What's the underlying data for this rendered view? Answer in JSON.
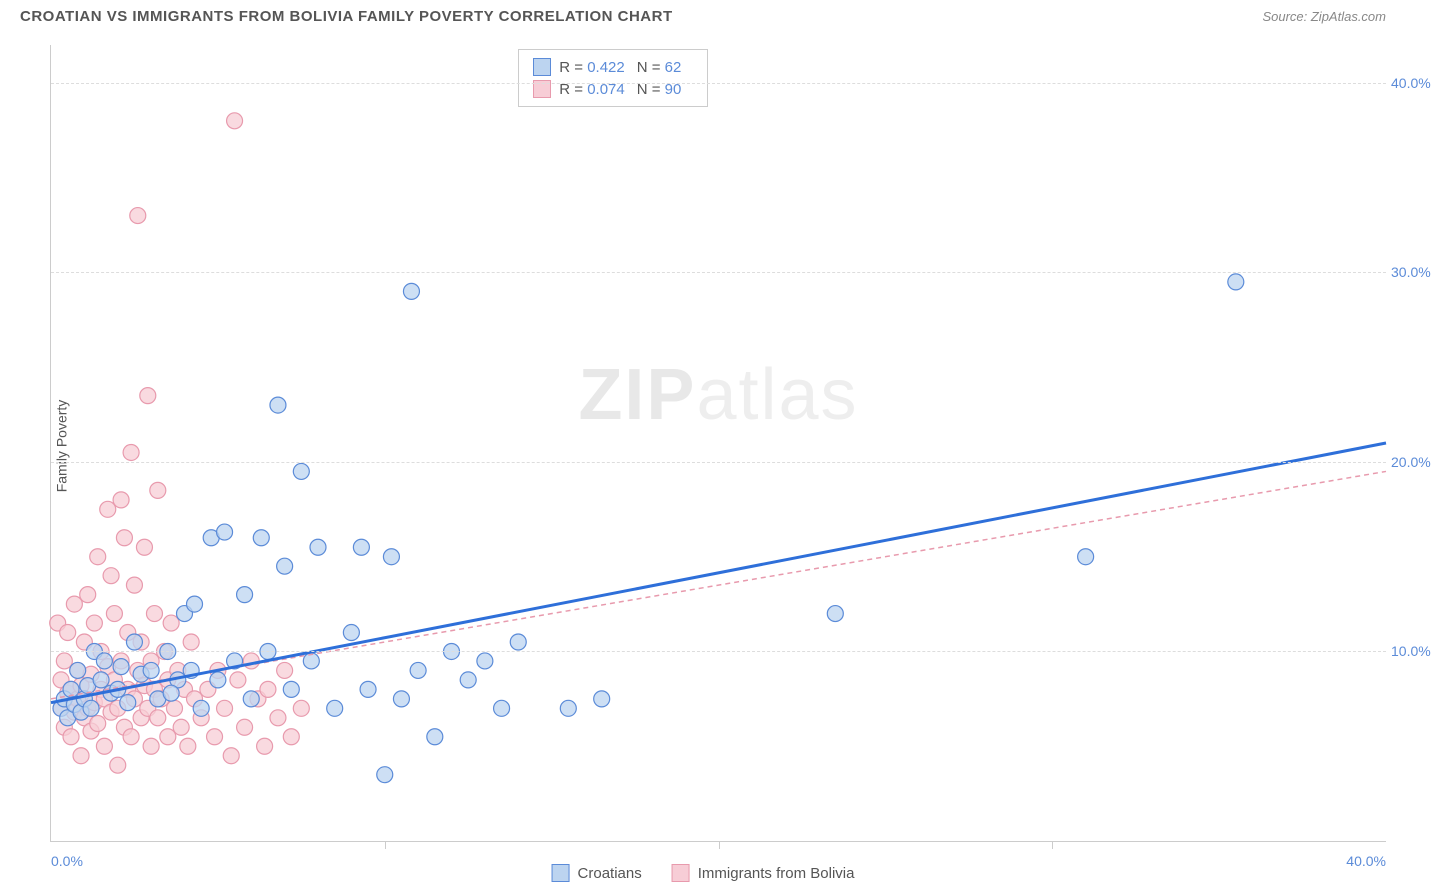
{
  "header": {
    "title": "CROATIAN VS IMMIGRANTS FROM BOLIVIA FAMILY POVERTY CORRELATION CHART",
    "source_prefix": "Source: ",
    "source_name": "ZipAtlas.com"
  },
  "watermark": {
    "bold": "ZIP",
    "light": "atlas"
  },
  "chart": {
    "type": "scatter",
    "xlim": [
      0,
      40
    ],
    "ylim": [
      0,
      42
    ],
    "y_axis_label": "Family Poverty",
    "y_ticks": [
      10,
      20,
      30,
      40
    ],
    "y_tick_labels": [
      "10.0%",
      "20.0%",
      "30.0%",
      "40.0%"
    ],
    "x_ticks": [
      0,
      10,
      20,
      30,
      40
    ],
    "x_tick_labels_ends": {
      "left": "0.0%",
      "right": "40.0%"
    },
    "grid_color": "#dddddd",
    "axis_color": "#cccccc",
    "label_color": "#5b8bd8",
    "background_color": "#ffffff",
    "marker_radius": 8,
    "marker_stroke_width": 1.2,
    "series": [
      {
        "name": "Croatians",
        "color_fill": "#bcd4f0",
        "color_stroke": "#5b8bd8",
        "trend": {
          "x1": 0,
          "y1": 7.3,
          "x2": 40,
          "y2": 21.0,
          "stroke": "#2e6fd9",
          "width": 3,
          "dash": "none"
        },
        "stats": {
          "R": "0.422",
          "N": "62"
        },
        "points": [
          [
            0.3,
            7.0
          ],
          [
            0.4,
            7.5
          ],
          [
            0.5,
            6.5
          ],
          [
            0.6,
            8.0
          ],
          [
            0.7,
            7.2
          ],
          [
            0.8,
            9.0
          ],
          [
            0.9,
            6.8
          ],
          [
            1.0,
            7.5
          ],
          [
            1.1,
            8.2
          ],
          [
            1.2,
            7.0
          ],
          [
            1.3,
            10.0
          ],
          [
            1.5,
            8.5
          ],
          [
            1.6,
            9.5
          ],
          [
            1.8,
            7.8
          ],
          [
            2.0,
            8.0
          ],
          [
            2.1,
            9.2
          ],
          [
            2.3,
            7.3
          ],
          [
            2.5,
            10.5
          ],
          [
            2.7,
            8.8
          ],
          [
            3.0,
            9.0
          ],
          [
            3.2,
            7.5
          ],
          [
            3.5,
            10.0
          ],
          [
            3.8,
            8.5
          ],
          [
            4.0,
            12.0
          ],
          [
            4.2,
            9.0
          ],
          [
            4.5,
            7.0
          ],
          [
            4.8,
            16.0
          ],
          [
            5.0,
            8.5
          ],
          [
            5.2,
            16.3
          ],
          [
            5.5,
            9.5
          ],
          [
            5.8,
            13.0
          ],
          [
            6.0,
            7.5
          ],
          [
            6.3,
            16.0
          ],
          [
            6.5,
            10.0
          ],
          [
            6.8,
            23.0
          ],
          [
            7.0,
            14.5
          ],
          [
            7.2,
            8.0
          ],
          [
            7.5,
            19.5
          ],
          [
            7.8,
            9.5
          ],
          [
            8.0,
            15.5
          ],
          [
            8.5,
            7.0
          ],
          [
            9.0,
            11.0
          ],
          [
            9.3,
            15.5
          ],
          [
            9.5,
            8.0
          ],
          [
            10.0,
            3.5
          ],
          [
            10.2,
            15.0
          ],
          [
            10.5,
            7.5
          ],
          [
            10.8,
            29.0
          ],
          [
            11.0,
            9.0
          ],
          [
            11.5,
            5.5
          ],
          [
            12.0,
            10.0
          ],
          [
            12.5,
            8.5
          ],
          [
            13.0,
            9.5
          ],
          [
            13.5,
            7.0
          ],
          [
            14.0,
            10.5
          ],
          [
            15.5,
            7.0
          ],
          [
            16.5,
            7.5
          ],
          [
            23.5,
            12.0
          ],
          [
            31.0,
            15.0
          ],
          [
            35.5,
            29.5
          ],
          [
            4.3,
            12.5
          ],
          [
            3.6,
            7.8
          ]
        ]
      },
      {
        "name": "Immigrants from Bolivia",
        "color_fill": "#f7cdd6",
        "color_stroke": "#e89aad",
        "trend": {
          "x1": 0,
          "y1": 7.5,
          "x2": 40,
          "y2": 19.5,
          "stroke": "#e89aad",
          "width": 1.5,
          "dash": "5,4"
        },
        "stats": {
          "R": "0.074",
          "N": "90"
        },
        "points": [
          [
            0.2,
            11.5
          ],
          [
            0.3,
            7.0
          ],
          [
            0.3,
            8.5
          ],
          [
            0.4,
            6.0
          ],
          [
            0.4,
            9.5
          ],
          [
            0.5,
            7.8
          ],
          [
            0.5,
            11.0
          ],
          [
            0.6,
            5.5
          ],
          [
            0.6,
            8.0
          ],
          [
            0.7,
            6.8
          ],
          [
            0.7,
            12.5
          ],
          [
            0.8,
            7.5
          ],
          [
            0.8,
            9.0
          ],
          [
            0.9,
            4.5
          ],
          [
            0.9,
            8.2
          ],
          [
            1.0,
            6.5
          ],
          [
            1.0,
            10.5
          ],
          [
            1.1,
            7.0
          ],
          [
            1.1,
            13.0
          ],
          [
            1.2,
            5.8
          ],
          [
            1.2,
            8.8
          ],
          [
            1.3,
            7.3
          ],
          [
            1.3,
            11.5
          ],
          [
            1.4,
            6.2
          ],
          [
            1.4,
            15.0
          ],
          [
            1.5,
            8.0
          ],
          [
            1.5,
            10.0
          ],
          [
            1.6,
            5.0
          ],
          [
            1.6,
            7.5
          ],
          [
            1.7,
            9.2
          ],
          [
            1.7,
            17.5
          ],
          [
            1.8,
            6.8
          ],
          [
            1.8,
            14.0
          ],
          [
            1.9,
            8.5
          ],
          [
            1.9,
            12.0
          ],
          [
            2.0,
            4.0
          ],
          [
            2.0,
            7.0
          ],
          [
            2.1,
            18.0
          ],
          [
            2.1,
            9.5
          ],
          [
            2.2,
            6.0
          ],
          [
            2.2,
            16.0
          ],
          [
            2.3,
            8.0
          ],
          [
            2.3,
            11.0
          ],
          [
            2.4,
            5.5
          ],
          [
            2.4,
            20.5
          ],
          [
            2.5,
            7.5
          ],
          [
            2.5,
            13.5
          ],
          [
            2.6,
            9.0
          ],
          [
            2.6,
            33.0
          ],
          [
            2.7,
            6.5
          ],
          [
            2.7,
            10.5
          ],
          [
            2.8,
            8.2
          ],
          [
            2.8,
            15.5
          ],
          [
            2.9,
            7.0
          ],
          [
            2.9,
            23.5
          ],
          [
            3.0,
            5.0
          ],
          [
            3.0,
            9.5
          ],
          [
            3.1,
            8.0
          ],
          [
            3.1,
            12.0
          ],
          [
            3.2,
            6.5
          ],
          [
            3.2,
            18.5
          ],
          [
            3.3,
            7.5
          ],
          [
            3.4,
            10.0
          ],
          [
            3.5,
            5.5
          ],
          [
            3.5,
            8.5
          ],
          [
            3.6,
            11.5
          ],
          [
            3.7,
            7.0
          ],
          [
            3.8,
            9.0
          ],
          [
            3.9,
            6.0
          ],
          [
            4.0,
            8.0
          ],
          [
            4.1,
            5.0
          ],
          [
            4.2,
            10.5
          ],
          [
            4.3,
            7.5
          ],
          [
            4.5,
            6.5
          ],
          [
            4.7,
            8.0
          ],
          [
            4.9,
            5.5
          ],
          [
            5.0,
            9.0
          ],
          [
            5.2,
            7.0
          ],
          [
            5.4,
            4.5
          ],
          [
            5.5,
            38.0
          ],
          [
            5.6,
            8.5
          ],
          [
            5.8,
            6.0
          ],
          [
            6.0,
            9.5
          ],
          [
            6.2,
            7.5
          ],
          [
            6.4,
            5.0
          ],
          [
            6.5,
            8.0
          ],
          [
            6.8,
            6.5
          ],
          [
            7.0,
            9.0
          ],
          [
            7.2,
            5.5
          ],
          [
            7.5,
            7.0
          ]
        ]
      }
    ]
  },
  "legend": {
    "stats_labels": {
      "R": "R =",
      "N": "N ="
    },
    "items": [
      {
        "label": "Croatians",
        "swatch_fill": "#bcd4f0",
        "swatch_stroke": "#5b8bd8"
      },
      {
        "label": "Immigrants from Bolivia",
        "swatch_fill": "#f7cdd6",
        "swatch_stroke": "#e89aad"
      }
    ]
  }
}
